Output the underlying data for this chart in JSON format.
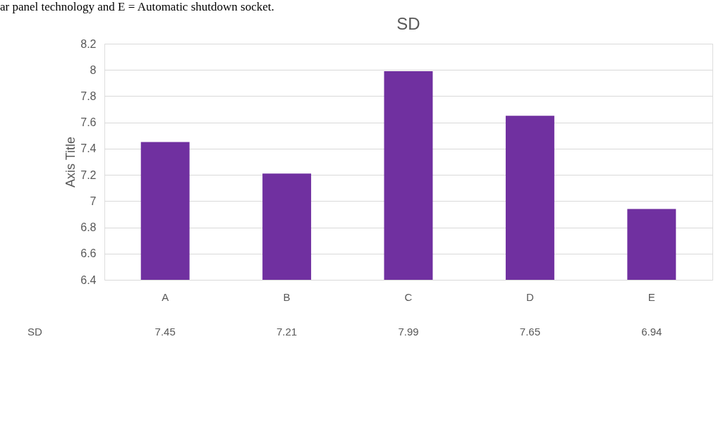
{
  "chart_data": {
    "type": "bar",
    "title": "SD",
    "ylabel": "Axis Title",
    "annotations": [
      "ar panel technology and E = Automatic shutdown socket."
    ],
    "categories": [
      "A",
      "B",
      "C",
      "D",
      "E"
    ],
    "series": [
      {
        "name": "SD",
        "color": "#7030a0",
        "values": [
          7.45,
          7.21,
          7.99,
          7.65,
          6.94
        ]
      }
    ],
    "ylim": [
      6.4,
      8.2
    ],
    "yticks": [
      6.4,
      6.6,
      6.8,
      7,
      7.2,
      7.4,
      7.6,
      7.8,
      8,
      8.2
    ],
    "grid": "y",
    "data_labels": true
  }
}
